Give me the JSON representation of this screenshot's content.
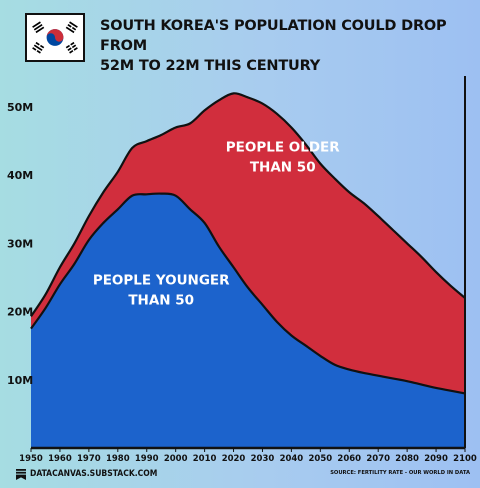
{
  "header": {
    "title_line1": "SOUTH KOREA'S POPULATION COULD DROP FROM",
    "title_line2": "52M TO 22M THIS CENTURY"
  },
  "flag": {
    "icon": "south-korea-flag-icon",
    "red": "#cd2e3a",
    "blue": "#0047a0",
    "black": "#000000"
  },
  "footer": {
    "brand": "DATACANVAS.SUBSTACK.COM",
    "brand_icon": "substack-icon",
    "source": "SOURCE: FERTILITY RATE - OUR WORLD IN DATA"
  },
  "chart_data": {
    "type": "area",
    "stacked": true,
    "x": [
      1950,
      1955,
      1960,
      1965,
      1970,
      1975,
      1980,
      1985,
      1990,
      1995,
      2000,
      2005,
      2010,
      2015,
      2020,
      2025,
      2030,
      2035,
      2040,
      2045,
      2050,
      2055,
      2060,
      2065,
      2070,
      2075,
      2080,
      2085,
      2090,
      2095,
      2100
    ],
    "series": [
      {
        "name": "PEOPLE YOUNGER THAN 50",
        "color": "#1c63cc",
        "values": [
          17.5,
          20.5,
          24,
          27,
          30.5,
          33,
          35,
          37,
          37.2,
          37.3,
          37,
          35,
          33,
          29.5,
          26.5,
          23.5,
          21,
          18.5,
          16.5,
          15,
          13.5,
          12.2,
          11.5,
          11,
          10.6,
          10.2,
          9.8,
          9.3,
          8.8,
          8.4,
          8
        ]
      },
      {
        "name": "PEOPLE OLDER THAN 50",
        "color": "#d12e3d",
        "values": [
          1.8,
          2,
          2.5,
          3,
          3.5,
          4.5,
          5.5,
          7,
          7.8,
          8.6,
          10,
          12.6,
          16.5,
          21.5,
          25.5,
          27.9,
          29.5,
          30.5,
          30.5,
          29.5,
          28.2,
          27.3,
          26,
          24.9,
          23.4,
          21.8,
          20.2,
          18.7,
          17,
          15.4,
          14
        ]
      }
    ],
    "ylim": [
      0,
      55
    ],
    "yticks": [
      10,
      20,
      30,
      40,
      50
    ],
    "ytick_labels": [
      "10M",
      "20M",
      "30M",
      "40M",
      "50M"
    ],
    "xticks": [
      1950,
      1960,
      1970,
      1980,
      1990,
      2000,
      2010,
      2020,
      2030,
      2040,
      2050,
      2060,
      2070,
      2080,
      2090,
      2100
    ],
    "labels": [
      {
        "text_line1": "PEOPLE OLDER",
        "text_line2": "THAN 50",
        "x": 2037,
        "y": 43.5
      },
      {
        "text_line1": "PEOPLE YOUNGER",
        "text_line2": "THAN 50",
        "x": 1995,
        "y": 24
      }
    ],
    "grid": false
  }
}
